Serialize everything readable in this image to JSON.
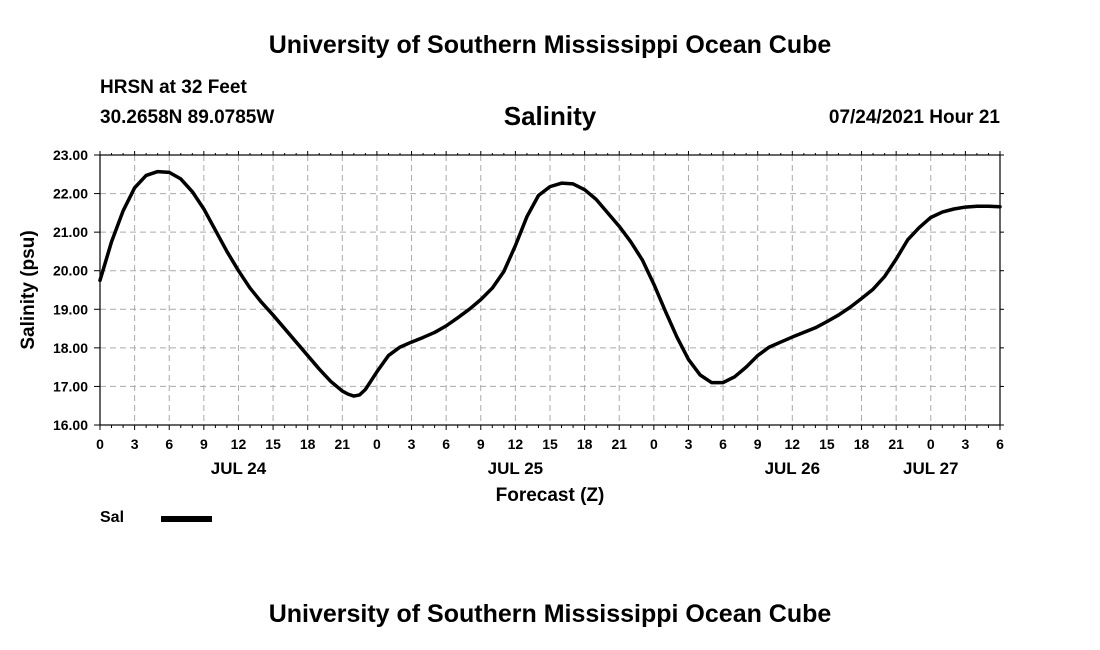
{
  "header": {
    "title": "University of Southern Mississippi Ocean Cube",
    "station": "HRSN at 32 Feet",
    "coordinates": "30.2658N  89.0785W",
    "chart_title": "Salinity",
    "datetime": "07/24/2021 Hour 21"
  },
  "footer": {
    "title": "University of Southern Mississippi Ocean Cube"
  },
  "legend": {
    "label": "Sal"
  },
  "chart_data": {
    "type": "line",
    "title": "Salinity",
    "xlabel": "Forecast (Z)",
    "ylabel": "Salinity (psu)",
    "ylim": [
      16.0,
      23.0
    ],
    "y_ticks": [
      "16.00",
      "17.00",
      "18.00",
      "19.00",
      "20.00",
      "21.00",
      "22.00",
      "23.00"
    ],
    "x_tick_labels": [
      "0",
      "3",
      "6",
      "9",
      "12",
      "15",
      "18",
      "21",
      "0",
      "3",
      "6",
      "9",
      "12",
      "15",
      "18",
      "21",
      "0",
      "3",
      "6",
      "9",
      "12",
      "15",
      "18",
      "21",
      "0",
      "3",
      "6"
    ],
    "date_labels": [
      {
        "label": "JUL 24",
        "hour": 12
      },
      {
        "label": "JUL 25",
        "hour": 36
      },
      {
        "label": "JUL 26",
        "hour": 60
      },
      {
        "label": "JUL 27",
        "hour": 72
      }
    ],
    "xlim_hours": [
      0,
      78
    ],
    "grid": true,
    "legend_position": "bottom-left",
    "series": [
      {
        "name": "Sal",
        "color": "#000000",
        "x_hours": [
          0,
          1,
          2,
          3,
          4,
          5,
          6,
          7,
          8,
          9,
          10,
          11,
          12,
          13,
          14,
          15,
          16,
          17,
          18,
          19,
          20,
          21,
          21.5,
          22,
          22.5,
          23,
          24,
          25,
          26,
          27,
          28,
          29,
          30,
          31,
          32,
          33,
          34,
          35,
          36,
          37,
          38,
          39,
          40,
          41,
          42,
          43,
          44,
          45,
          46,
          47,
          48,
          49,
          50,
          51,
          52,
          53,
          54,
          55,
          56,
          57,
          58,
          59,
          60,
          61,
          62,
          63,
          64,
          65,
          66,
          67,
          68,
          69,
          70,
          71,
          72,
          73,
          74,
          75,
          76,
          77,
          78
        ],
        "values": [
          19.75,
          20.75,
          21.55,
          22.15,
          22.47,
          22.57,
          22.55,
          22.38,
          22.05,
          21.6,
          21.05,
          20.5,
          20.0,
          19.55,
          19.18,
          18.85,
          18.5,
          18.15,
          17.8,
          17.45,
          17.13,
          16.88,
          16.8,
          16.75,
          16.78,
          16.92,
          17.38,
          17.8,
          18.02,
          18.15,
          18.27,
          18.4,
          18.57,
          18.78,
          19.0,
          19.25,
          19.55,
          19.98,
          20.65,
          21.4,
          21.95,
          22.18,
          22.27,
          22.25,
          22.1,
          21.85,
          21.5,
          21.15,
          20.75,
          20.28,
          19.65,
          18.95,
          18.28,
          17.7,
          17.3,
          17.1,
          17.1,
          17.25,
          17.5,
          17.8,
          18.02,
          18.15,
          18.28,
          18.4,
          18.52,
          18.68,
          18.85,
          19.05,
          19.28,
          19.52,
          19.85,
          20.3,
          20.8,
          21.12,
          21.38,
          21.52,
          21.6,
          21.65,
          21.67,
          21.67,
          21.66
        ]
      }
    ]
  }
}
